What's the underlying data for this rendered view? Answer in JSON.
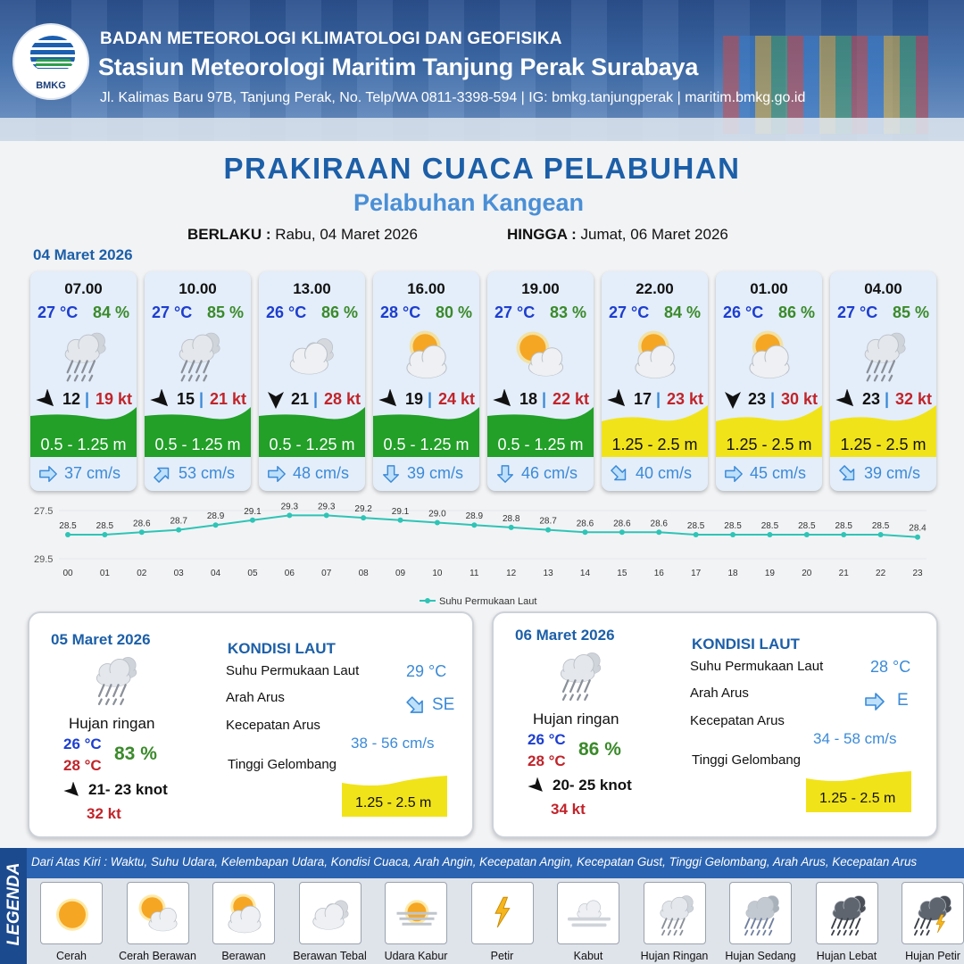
{
  "header": {
    "agency": "BADAN METEOROLOGI KLIMATOLOGI DAN GEOFISIKA",
    "station": "Stasiun Meteorologi Maritim Tanjung Perak Surabaya",
    "address": "Jl. Kalimas Baru 97B, Tanjung Perak, No. Telp/WA 0811-3398-594 | IG: bmkg.tanjungperak | maritim.bmkg.go.id",
    "logo_text": "BMKG"
  },
  "title": "PRAKIRAAN CUACA PELABUHAN",
  "subtitle": "Pelabuhan Kangean",
  "validity": {
    "from_label": "BERLAKU :",
    "from_value": "Rabu, 04 Maret 2026",
    "to_label": "HINGGA :",
    "to_value": "Jumat, 06 Maret 2026"
  },
  "day1_label": "04 Maret 2026",
  "colors": {
    "temp": "#1d3ecf",
    "humidity": "#3a8a2a",
    "gust": "#c0242a",
    "wave_low": "#22a028",
    "wave_mid": "#f1e31a",
    "current": "#3b8ad8"
  },
  "hourly": [
    {
      "time": "07.00",
      "temp": "27 °C",
      "hum": "84 %",
      "icon": "light-rain-icon",
      "wind_dir_deg": 225,
      "wind": "12",
      "gust": "19 kt",
      "wave": "0.5 - 1.25 m",
      "wave_level": "low",
      "current_dir_deg": 90,
      "current": "37 cm/s"
    },
    {
      "time": "10.00",
      "temp": "27 °C",
      "hum": "85 %",
      "icon": "light-rain-icon",
      "wind_dir_deg": 225,
      "wind": "15",
      "gust": "21 kt",
      "wave": "0.5 - 1.25 m",
      "wave_level": "low",
      "current_dir_deg": 45,
      "current": "53 cm/s"
    },
    {
      "time": "13.00",
      "temp": "26 °C",
      "hum": "86 %",
      "icon": "thick-cloudy-icon",
      "wind_dir_deg": 270,
      "wind": "21",
      "gust": "28 kt",
      "wave": "0.5 - 1.25 m",
      "wave_level": "low",
      "current_dir_deg": 90,
      "current": "48 cm/s"
    },
    {
      "time": "16.00",
      "temp": "28 °C",
      "hum": "80 %",
      "icon": "cloudy-icon",
      "wind_dir_deg": 225,
      "wind": "19",
      "gust": "24 kt",
      "wave": "0.5 - 1.25 m",
      "wave_level": "low",
      "current_dir_deg": 180,
      "current": "39 cm/s"
    },
    {
      "time": "19.00",
      "temp": "27 °C",
      "hum": "83 %",
      "icon": "partly-cloudy-icon",
      "wind_dir_deg": 225,
      "wind": "18",
      "gust": "22 kt",
      "wave": "0.5 - 1.25 m",
      "wave_level": "low",
      "current_dir_deg": 180,
      "current": "46 cm/s"
    },
    {
      "time": "22.00",
      "temp": "27 °C",
      "hum": "84 %",
      "icon": "cloudy-icon",
      "wind_dir_deg": 225,
      "wind": "17",
      "gust": "23 kt",
      "wave": "1.25 - 2.5 m",
      "wave_level": "mid",
      "current_dir_deg": 135,
      "current": "40 cm/s"
    },
    {
      "time": "01.00",
      "temp": "26 °C",
      "hum": "86 %",
      "icon": "cloudy-icon",
      "wind_dir_deg": 270,
      "wind": "23",
      "gust": "30 kt",
      "wave": "1.25 - 2.5 m",
      "wave_level": "mid",
      "current_dir_deg": 90,
      "current": "45 cm/s"
    },
    {
      "time": "04.00",
      "temp": "27 °C",
      "hum": "85 %",
      "icon": "light-rain-icon",
      "wind_dir_deg": 225,
      "wind": "23",
      "gust": "32 kt",
      "wave": "1.25 - 2.5 m",
      "wave_level": "mid",
      "current_dir_deg": 135,
      "current": "39 cm/s"
    }
  ],
  "chart_data": {
    "type": "line",
    "x": [
      "00",
      "01",
      "02",
      "03",
      "04",
      "05",
      "06",
      "07",
      "08",
      "09",
      "10",
      "11",
      "12",
      "13",
      "14",
      "15",
      "16",
      "17",
      "18",
      "19",
      "20",
      "21",
      "22",
      "23"
    ],
    "series": [
      {
        "name": "Suhu Permukaan Laut",
        "values": [
          28.5,
          28.5,
          28.6,
          28.7,
          28.9,
          29.1,
          29.3,
          29.3,
          29.2,
          29.1,
          29.0,
          28.9,
          28.8,
          28.7,
          28.6,
          28.6,
          28.6,
          28.5,
          28.5,
          28.5,
          28.5,
          28.5,
          28.5,
          28.4
        ]
      }
    ],
    "ylim": [
      27.5,
      29.5
    ],
    "yticks": [
      "27.5",
      "29.5"
    ],
    "legend": "bottom",
    "color": "#2ec4b6"
  },
  "days": [
    {
      "date": "05 Maret 2026",
      "icon": "light-rain-icon",
      "condition": "Hujan ringan",
      "tmin": "26 °C",
      "tmax": "28 °C",
      "hum": "83 %",
      "wind_dir_deg": 225,
      "wind": "21- 23 knot",
      "gust": "32 kt",
      "sea_title": "KONDISI LAUT",
      "sst_label": "Suhu Permukaan Laut",
      "sst": "29 °C",
      "dir_label": "Arah Arus",
      "current_dir_deg": 135,
      "current_dir": "SE",
      "speed_label": "Kecepatan Arus",
      "speed": "38  - 56 cm/s",
      "wave_label": "Tinggi Gelombang",
      "wave": "1.25 - 2.5 m"
    },
    {
      "date": "06 Maret 2026",
      "icon": "light-rain-icon",
      "condition": "Hujan ringan",
      "tmin": "26 °C",
      "tmax": "28 °C",
      "hum": "86 %",
      "wind_dir_deg": 225,
      "wind": "20- 25 knot",
      "gust": "34 kt",
      "sea_title": "KONDISI LAUT",
      "sst_label": "Suhu Permukaan Laut",
      "sst": "28 °C",
      "dir_label": "Arah Arus",
      "current_dir_deg": 90,
      "current_dir": "E",
      "speed_label": "Kecepatan Arus",
      "speed": "34 - 58 cm/s",
      "wave_label": "Tinggi Gelombang",
      "wave": "1.25 - 2.5 m"
    }
  ],
  "legend": {
    "side_title": "LEGENDA",
    "description": "Dari Atas Kiri : Waktu, Suhu Udara, Kelembapan Udara, Kondisi Cuaca, Arah Angin, Kecepatan Angin, Kecepatan Gust, Tinggi Gelombang, Arah Arus, Kecepatan Arus",
    "items": [
      {
        "label": "Cerah",
        "icon": "sunny-icon"
      },
      {
        "label": "Cerah Berawan",
        "icon": "partly-cloudy-icon"
      },
      {
        "label": "Berawan",
        "icon": "cloudy-icon"
      },
      {
        "label": "Berawan Tebal",
        "icon": "thick-cloudy-icon"
      },
      {
        "label": "Udara Kabur",
        "icon": "haze-icon"
      },
      {
        "label": "Petir",
        "icon": "lightning-icon"
      },
      {
        "label": "Kabut",
        "icon": "fog-icon"
      },
      {
        "label": "Hujan Ringan",
        "icon": "light-rain-icon"
      },
      {
        "label": "Hujan Sedang",
        "icon": "moderate-rain-icon"
      },
      {
        "label": "Hujan Lebat",
        "icon": "heavy-rain-icon"
      },
      {
        "label": "Hujan Petir",
        "icon": "thunderstorm-icon"
      }
    ]
  }
}
